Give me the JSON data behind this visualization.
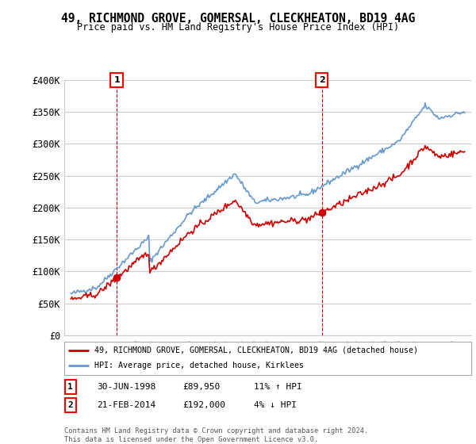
{
  "title": "49, RICHMOND GROVE, GOMERSAL, CLECKHEATON, BD19 4AG",
  "subtitle": "Price paid vs. HM Land Registry's House Price Index (HPI)",
  "ylim": [
    0,
    400000
  ],
  "yticks": [
    0,
    50000,
    100000,
    150000,
    200000,
    250000,
    300000,
    350000,
    400000
  ],
  "ytick_labels": [
    "£0",
    "£50K",
    "£100K",
    "£150K",
    "£200K",
    "£250K",
    "£300K",
    "£350K",
    "£400K"
  ],
  "sale1_year": 1998.5,
  "sale1_price": 89950,
  "sale1_label": "1",
  "sale1_date": "30-JUN-1998",
  "sale2_year": 2014.12,
  "sale2_price": 192000,
  "sale2_label": "2",
  "sale2_date": "21-FEB-2014",
  "legend_house": "49, RICHMOND GROVE, GOMERSAL, CLECKHEATON, BD19 4AG (detached house)",
  "legend_hpi": "HPI: Average price, detached house, Kirklees",
  "footer": "Contains HM Land Registry data © Crown copyright and database right 2024.\nThis data is licensed under the Open Government Licence v3.0.",
  "line_color_house": "#cc0000",
  "line_color_hpi": "#6699cc",
  "vline_color": "#cc0000",
  "bg_color": "#ffffff",
  "grid_color": "#cccccc",
  "table_row1": [
    "1",
    "30-JUN-1998",
    "£89,950",
    "11% ↑ HPI"
  ],
  "table_row2": [
    "2",
    "21-FEB-2014",
    "£192,000",
    "4% ↓ HPI"
  ]
}
